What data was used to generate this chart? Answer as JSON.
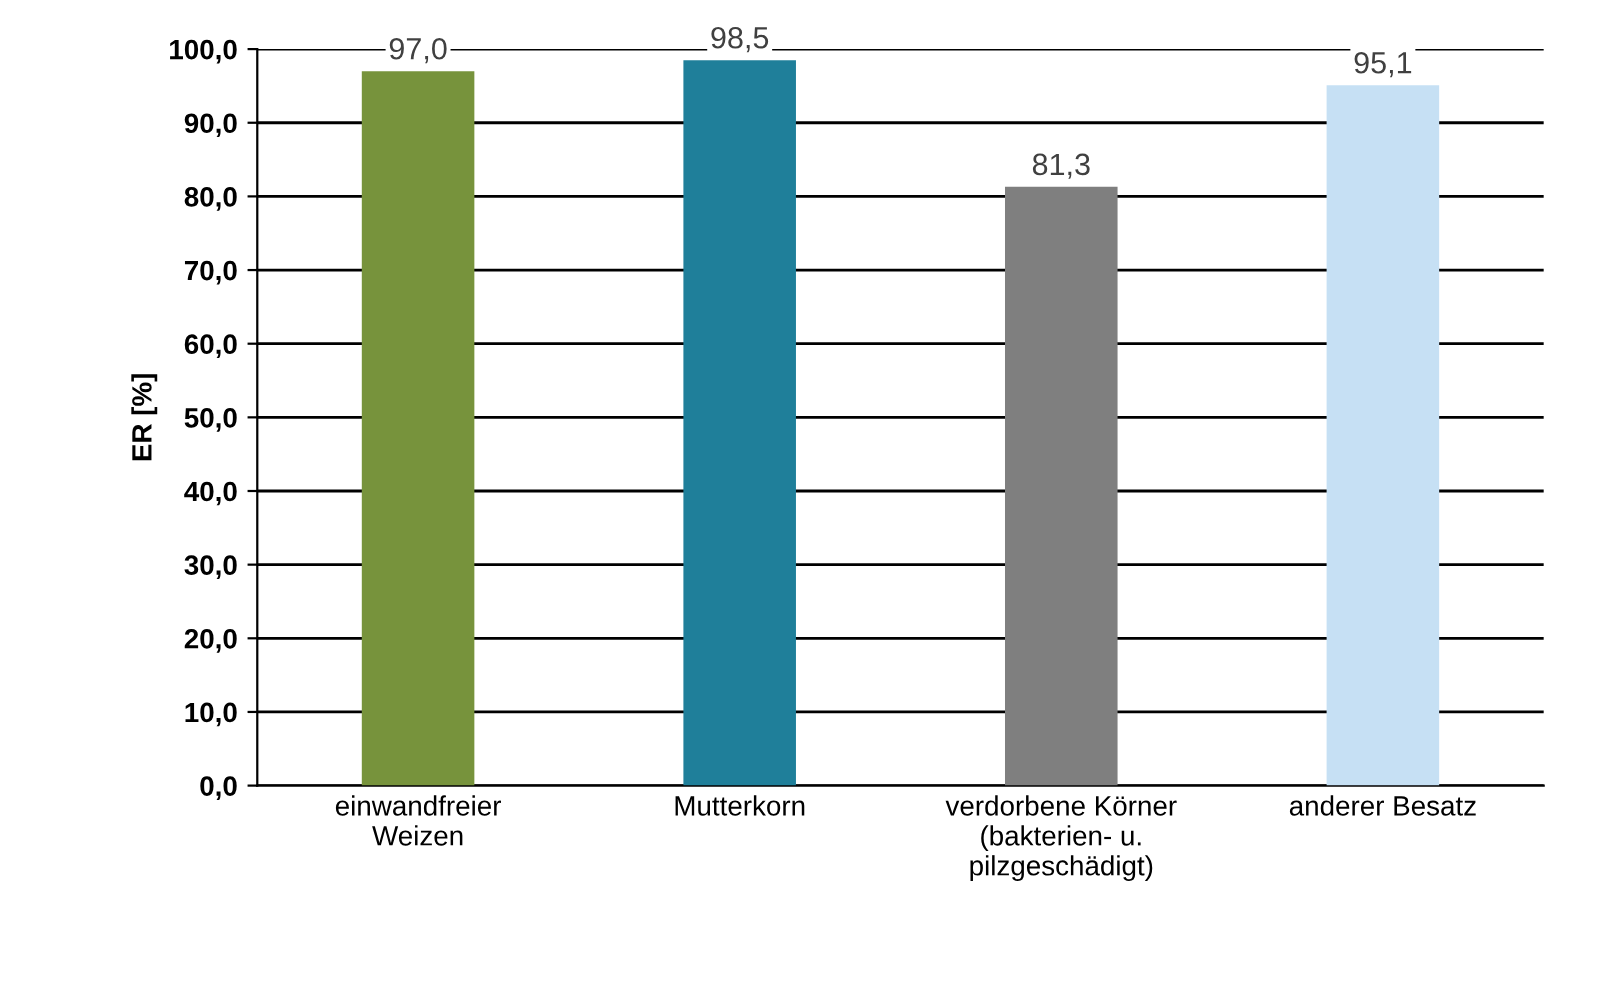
{
  "chart_data": {
    "type": "bar",
    "ylabel": "ER [%]",
    "categories": [
      "einwandfreier\nWeizen",
      "Mutterkorn",
      "verdorbene Körner\n(bakterien- u.\npilzgeschädigt)",
      "anderer Besatz"
    ],
    "values": [
      97.0,
      98.5,
      81.3,
      95.1
    ],
    "colors": [
      "#77933c",
      "#1f7f9a",
      "#7f7f7f",
      "#c6e0f4"
    ],
    "value_labels": [
      "97,0",
      "98,5",
      "81,3",
      "95,1"
    ],
    "ylim": [
      0,
      100
    ],
    "yticks": [
      {
        "value": 0,
        "label": "0,0"
      },
      {
        "value": 10,
        "label": "10,0"
      },
      {
        "value": 20,
        "label": "20,0"
      },
      {
        "value": 30,
        "label": "30,0"
      },
      {
        "value": 40,
        "label": "40,0"
      },
      {
        "value": 50,
        "label": "50,0"
      },
      {
        "value": 60,
        "label": "60,0"
      },
      {
        "value": 70,
        "label": "70,0"
      },
      {
        "value": 80,
        "label": "80,0"
      },
      {
        "value": 90,
        "label": "90,0"
      },
      {
        "value": 100,
        "label": "100,0"
      }
    ],
    "grid": "y",
    "legend": false
  }
}
